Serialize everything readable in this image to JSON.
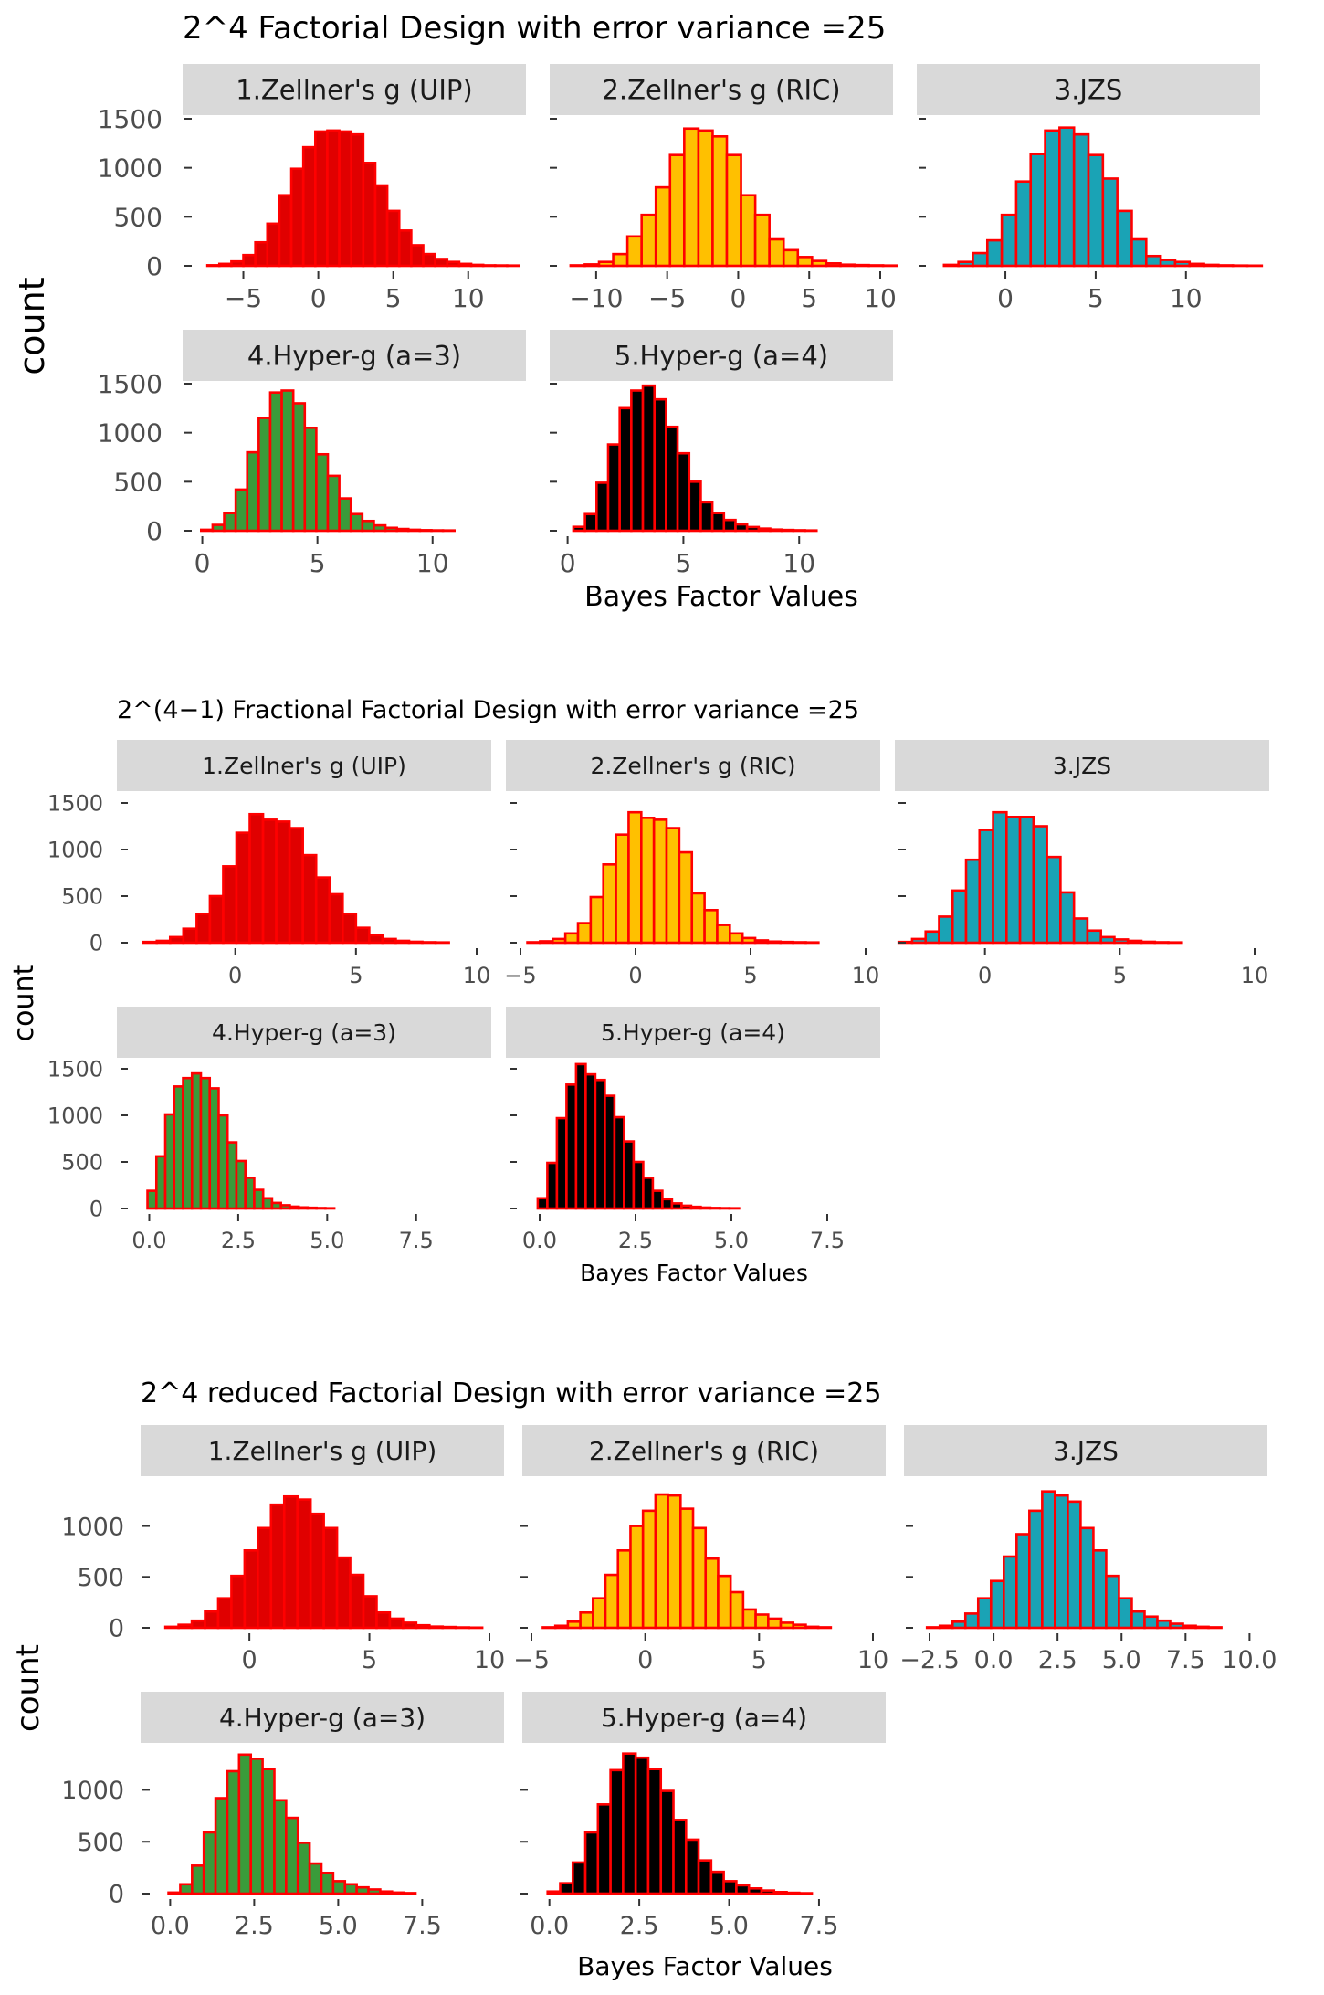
{
  "figure": {
    "y_label": "count",
    "x_label": "Bayes Factor Values"
  },
  "chart_data": [
    {
      "type": "bar",
      "title": "2^4 Factorial Design with error variance =25",
      "xlabel": "Bayes Factor Values",
      "ylabel": "count",
      "panels": [
        {
          "strip": "1.Zellner's g (UIP)",
          "fill": "#e00000",
          "x_start": -7.4,
          "binwidth": 0.8,
          "xlim": [
            -8.2,
            13.0
          ],
          "x_ticks": [
            -5,
            0,
            5,
            10
          ],
          "x_tick_labels": [
            "−5",
            "0",
            "5",
            "10"
          ],
          "y_ticks": [
            0,
            500,
            1000,
            1500
          ],
          "y_tick_labels": [
            "0",
            "500",
            "1000",
            "1500"
          ],
          "ylim": [
            0,
            1500
          ],
          "counts": [
            6,
            20,
            45,
            110,
            240,
            430,
            720,
            990,
            1210,
            1370,
            1380,
            1370,
            1340,
            1050,
            820,
            560,
            360,
            210,
            120,
            70,
            40,
            20,
            10,
            5,
            4,
            3
          ]
        },
        {
          "strip": "2.Zellner's g (RIC)",
          "fill": "#ffc000",
          "x_start": -11.8,
          "binwidth": 1.0,
          "xlim": [
            -12.5,
            10.0
          ],
          "x_ticks": [
            -10,
            -5,
            0,
            5,
            10
          ],
          "x_tick_labels": [
            "−10",
            "−5",
            "0",
            "5",
            "10"
          ],
          "y_ticks": [
            0,
            500,
            1000,
            1500
          ],
          "y_tick_labels": [
            "0",
            "500",
            "1000",
            "1500"
          ],
          "ylim": [
            0,
            1500
          ],
          "counts": [
            5,
            15,
            40,
            120,
            300,
            520,
            800,
            1130,
            1400,
            1380,
            1320,
            1130,
            720,
            520,
            270,
            160,
            90,
            50,
            25,
            12,
            8,
            5,
            3
          ]
        },
        {
          "strip": "3.JZS",
          "fill": "#1aa3b5",
          "x_start": -3.4,
          "binwidth": 0.8,
          "xlim": [
            -4.2,
            13.5
          ],
          "x_ticks": [
            0,
            5,
            10
          ],
          "x_tick_labels": [
            "0",
            "5",
            "10"
          ],
          "y_ticks": [
            0,
            500,
            1000,
            1500
          ],
          "y_tick_labels": [
            "0",
            "500",
            "1000",
            "1500"
          ],
          "ylim": [
            0,
            1500
          ],
          "counts": [
            10,
            40,
            130,
            260,
            520,
            860,
            1140,
            1380,
            1410,
            1340,
            1130,
            890,
            560,
            270,
            100,
            60,
            40,
            20,
            10,
            5,
            3,
            2
          ]
        },
        {
          "strip": "4.Hyper-g (a=3)",
          "fill": "#3a9b3a",
          "x_start": -0.05,
          "binwidth": 0.5,
          "xlim": [
            -0.3,
            13.5
          ],
          "x_ticks": [
            0,
            5,
            10
          ],
          "x_tick_labels": [
            "0",
            "5",
            "10"
          ],
          "y_ticks": [
            0,
            500,
            1000,
            1500
          ],
          "y_tick_labels": [
            "0",
            "500",
            "1000",
            "1500"
          ],
          "ylim": [
            0,
            1500
          ],
          "counts": [
            10,
            60,
            180,
            420,
            800,
            1150,
            1410,
            1430,
            1300,
            1050,
            780,
            560,
            330,
            170,
            100,
            55,
            30,
            18,
            10,
            6,
            4,
            3
          ]
        },
        {
          "strip": "5.Hyper-g (a=4)",
          "fill": "#000000",
          "x_start": 0.25,
          "binwidth": 0.5,
          "xlim": [
            -0.3,
            13.5
          ],
          "x_ticks": [
            0,
            5,
            10
          ],
          "x_tick_labels": [
            "0",
            "5",
            "10"
          ],
          "y_ticks": [
            0,
            500,
            1000,
            1500
          ],
          "y_tick_labels": [
            "0",
            "500",
            "1000",
            "1500"
          ],
          "ylim": [
            0,
            1500
          ],
          "counts": [
            40,
            170,
            490,
            880,
            1250,
            1430,
            1480,
            1340,
            1060,
            790,
            500,
            290,
            180,
            110,
            65,
            38,
            22,
            12,
            8,
            5,
            3
          ]
        }
      ]
    },
    {
      "type": "bar",
      "title": "2^(4−1) Fractional Factorial Design with error variance =25",
      "xlabel": "Bayes Factor Values",
      "ylabel": "count",
      "panels": [
        {
          "strip": "1.Zellner's g (UIP)",
          "fill": "#e00000",
          "x_start": -3.8,
          "binwidth": 0.55,
          "xlim": [
            -4.3,
            10.0
          ],
          "x_ticks": [
            0,
            5,
            10
          ],
          "x_tick_labels": [
            "0",
            "5",
            "10"
          ],
          "y_ticks": [
            0,
            500,
            1000,
            1500
          ],
          "y_tick_labels": [
            "0",
            "500",
            "1000",
            "1500"
          ],
          "ylim": [
            0,
            1500
          ],
          "counts": [
            8,
            20,
            60,
            150,
            310,
            500,
            820,
            1180,
            1380,
            1320,
            1300,
            1230,
            940,
            700,
            520,
            310,
            160,
            80,
            40,
            20,
            10,
            5,
            3
          ]
        },
        {
          "strip": "2.Zellner's g (RIC)",
          "fill": "#ffc000",
          "x_start": -4.7,
          "binwidth": 0.55,
          "xlim": [
            -5.0,
            10.0
          ],
          "x_ticks": [
            -5,
            0,
            5,
            10
          ],
          "x_tick_labels": [
            "−5",
            "0",
            "5",
            "10"
          ],
          "y_ticks": [
            0,
            500,
            1000,
            1500
          ],
          "y_tick_labels": [
            "0",
            "500",
            "1000",
            "1500"
          ],
          "ylim": [
            0,
            1500
          ],
          "counts": [
            5,
            15,
            40,
            100,
            210,
            490,
            840,
            1160,
            1400,
            1340,
            1320,
            1230,
            970,
            530,
            350,
            190,
            100,
            50,
            25,
            12,
            8,
            5,
            3
          ]
        },
        {
          "strip": "3.JZS",
          "fill": "#1aa3b5",
          "x_start": -3.2,
          "binwidth": 0.5,
          "xlim": [
            -2.8,
            10.0
          ],
          "x_ticks": [
            0,
            5,
            10
          ],
          "x_tick_labels": [
            "0",
            "5",
            "10"
          ],
          "y_ticks": [
            0,
            500,
            1000,
            1500
          ],
          "y_tick_labels": [
            "0",
            "500",
            "1000",
            "1500"
          ],
          "ylim": [
            0,
            1500
          ],
          "counts": [
            8,
            40,
            120,
            280,
            560,
            890,
            1210,
            1400,
            1350,
            1350,
            1250,
            920,
            540,
            260,
            130,
            60,
            35,
            20,
            10,
            5,
            3
          ]
        },
        {
          "strip": "4.Hyper-g (a=3)",
          "fill": "#3a9b3a",
          "x_start": -0.05,
          "binwidth": 0.25,
          "xlim": [
            -0.5,
            9.2
          ],
          "x_ticks": [
            0,
            2.5,
            5,
            7.5
          ],
          "x_tick_labels": [
            "0.0",
            "2.5",
            "5.0",
            "7.5"
          ],
          "y_ticks": [
            0,
            500,
            1000,
            1500
          ],
          "y_tick_labels": [
            "0",
            "500",
            "1000",
            "1500"
          ],
          "ylim": [
            0,
            1500
          ],
          "counts": [
            190,
            560,
            1010,
            1310,
            1400,
            1450,
            1400,
            1290,
            1000,
            710,
            510,
            330,
            200,
            110,
            60,
            35,
            20,
            12,
            8,
            5,
            3
          ]
        },
        {
          "strip": "5.Hyper-g (a=4)",
          "fill": "#000000",
          "x_start": -0.05,
          "binwidth": 0.25,
          "xlim": [
            -0.5,
            8.5
          ],
          "x_ticks": [
            0,
            2.5,
            5,
            7.5
          ],
          "x_tick_labels": [
            "0.0",
            "2.5",
            "5.0",
            "7.5"
          ],
          "y_ticks": [
            0,
            500,
            1000,
            1500
          ],
          "y_tick_labels": [
            "0",
            "500",
            "1000",
            "1500"
          ],
          "ylim": [
            0,
            1500
          ],
          "counts": [
            110,
            490,
            970,
            1330,
            1550,
            1440,
            1380,
            1210,
            980,
            720,
            500,
            330,
            190,
            100,
            55,
            30,
            18,
            10,
            6,
            4,
            3
          ]
        }
      ]
    },
    {
      "type": "bar",
      "title": "2^4 reduced Factorial Design with error variance =25",
      "xlabel": "Bayes Factor Values",
      "ylabel": "count",
      "panels": [
        {
          "strip": "1.Zellner's g (UIP)",
          "fill": "#e00000",
          "x_start": -3.5,
          "binwidth": 0.55,
          "xlim": [
            -4.0,
            10.0
          ],
          "x_ticks": [
            0,
            5,
            10
          ],
          "x_tick_labels": [
            "0",
            "5",
            "10"
          ],
          "y_ticks": [
            0,
            500,
            1000
          ],
          "y_tick_labels": [
            "0",
            "500",
            "1000"
          ],
          "ylim": [
            0,
            1400
          ],
          "counts": [
            10,
            30,
            70,
            160,
            290,
            510,
            760,
            980,
            1210,
            1290,
            1260,
            1120,
            980,
            690,
            520,
            310,
            150,
            90,
            50,
            25,
            12,
            8,
            4,
            2
          ]
        },
        {
          "strip": "2.Zellner's g (RIC)",
          "fill": "#ffc000",
          "x_start": -4.5,
          "binwidth": 0.55,
          "xlim": [
            -5.0,
            10.0
          ],
          "x_ticks": [
            -5,
            0,
            5,
            10
          ],
          "x_tick_labels": [
            "−5",
            "0",
            "5",
            "10"
          ],
          "y_ticks": [
            0,
            500,
            1000
          ],
          "y_tick_labels": [
            "0",
            "500",
            "1000"
          ],
          "ylim": [
            0,
            1400
          ],
          "counts": [
            5,
            20,
            60,
            150,
            290,
            520,
            760,
            1000,
            1150,
            1310,
            1300,
            1170,
            980,
            680,
            510,
            350,
            180,
            130,
            90,
            50,
            30,
            10,
            5
          ]
        },
        {
          "strip": "3.JZS",
          "fill": "#1aa3b5",
          "x_start": -2.6,
          "binwidth": 0.5,
          "xlim": [
            -3.0,
            10.2
          ],
          "x_ticks": [
            -2.5,
            0,
            2.5,
            5,
            7.5,
            10
          ],
          "x_tick_labels": [
            "−2.5",
            "0.0",
            "2.5",
            "5.0",
            "7.5",
            "10.0"
          ],
          "y_ticks": [
            0,
            500,
            1000
          ],
          "y_tick_labels": [
            "0",
            "500",
            "1000"
          ],
          "ylim": [
            0,
            1400
          ],
          "counts": [
            5,
            20,
            60,
            140,
            290,
            460,
            700,
            920,
            1150,
            1340,
            1300,
            1240,
            980,
            760,
            510,
            290,
            160,
            110,
            70,
            40,
            20,
            10,
            5
          ]
        },
        {
          "strip": "4.Hyper-g (a=3)",
          "fill": "#3a9b3a",
          "x_start": -0.05,
          "binwidth": 0.35,
          "xlim": [
            -0.5,
            9.5
          ],
          "x_ticks": [
            0,
            2.5,
            5,
            7.5
          ],
          "x_tick_labels": [
            "0.0",
            "2.5",
            "5.0",
            "7.5"
          ],
          "y_ticks": [
            0,
            500,
            1000
          ],
          "y_tick_labels": [
            "0",
            "500",
            "1000"
          ],
          "ylim": [
            0,
            1400
          ],
          "counts": [
            10,
            90,
            270,
            590,
            920,
            1180,
            1340,
            1300,
            1200,
            900,
            730,
            490,
            290,
            200,
            120,
            90,
            60,
            40,
            20,
            10,
            5
          ]
        },
        {
          "strip": "5.Hyper-g (a=4)",
          "fill": "#000000",
          "x_start": -0.05,
          "binwidth": 0.35,
          "xlim": [
            -0.5,
            9.0
          ],
          "x_ticks": [
            0,
            2.5,
            5,
            7.5
          ],
          "x_tick_labels": [
            "0.0",
            "2.5",
            "5.0",
            "7.5"
          ],
          "y_ticks": [
            0,
            500,
            1000
          ],
          "y_tick_labels": [
            "0",
            "500",
            "1000"
          ],
          "ylim": [
            0,
            1400
          ],
          "counts": [
            20,
            100,
            300,
            590,
            860,
            1190,
            1350,
            1310,
            1200,
            990,
            710,
            520,
            320,
            210,
            120,
            80,
            50,
            30,
            15,
            8,
            4
          ]
        }
      ]
    }
  ]
}
